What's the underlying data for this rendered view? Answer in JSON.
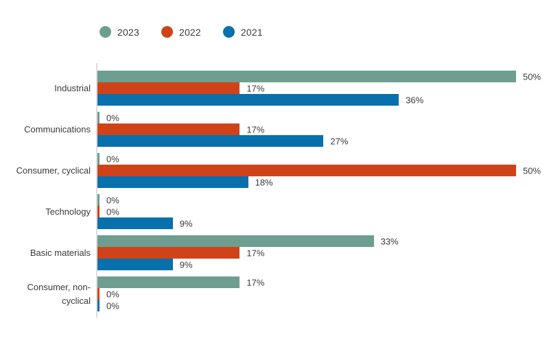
{
  "legend": {
    "items": [
      {
        "label": "2023",
        "color": "#6d9e8f"
      },
      {
        "label": "2022",
        "color": "#d04318"
      },
      {
        "label": "2021",
        "color": "#0770ad"
      }
    ]
  },
  "colors": {
    "axis_line": "#dcdcdc",
    "text": "#3a3a3a",
    "background": "#ffffff"
  },
  "chart_data": {
    "type": "bar",
    "orientation": "horizontal",
    "title": "",
    "xlabel": "",
    "ylabel": "",
    "value_suffix": "%",
    "data_labels": true,
    "grid": false,
    "legend_position": "top",
    "xlim": [
      0,
      54
    ],
    "categories": [
      "Industrial",
      "Communications",
      "Consumer, cyclical",
      "Technology",
      "Basic materials",
      "Consumer, non-cyclical"
    ],
    "series": [
      {
        "name": "2023",
        "color": "#6d9e8f",
        "values": [
          50,
          0,
          0,
          0,
          33,
          17
        ]
      },
      {
        "name": "2022",
        "color": "#d04318",
        "values": [
          17,
          17,
          50,
          0,
          17,
          0
        ]
      },
      {
        "name": "2021",
        "color": "#0770ad",
        "values": [
          36,
          27,
          18,
          9,
          9,
          0
        ]
      }
    ],
    "data_label_texts": [
      [
        "50%",
        "0%",
        "0%",
        "0%",
        "33%",
        "17%"
      ],
      [
        "17%",
        "17%",
        "50%",
        "0%",
        "17%",
        "0%"
      ],
      [
        "36%",
        "27%",
        "18%",
        "9%",
        "9%",
        "0%"
      ]
    ]
  }
}
